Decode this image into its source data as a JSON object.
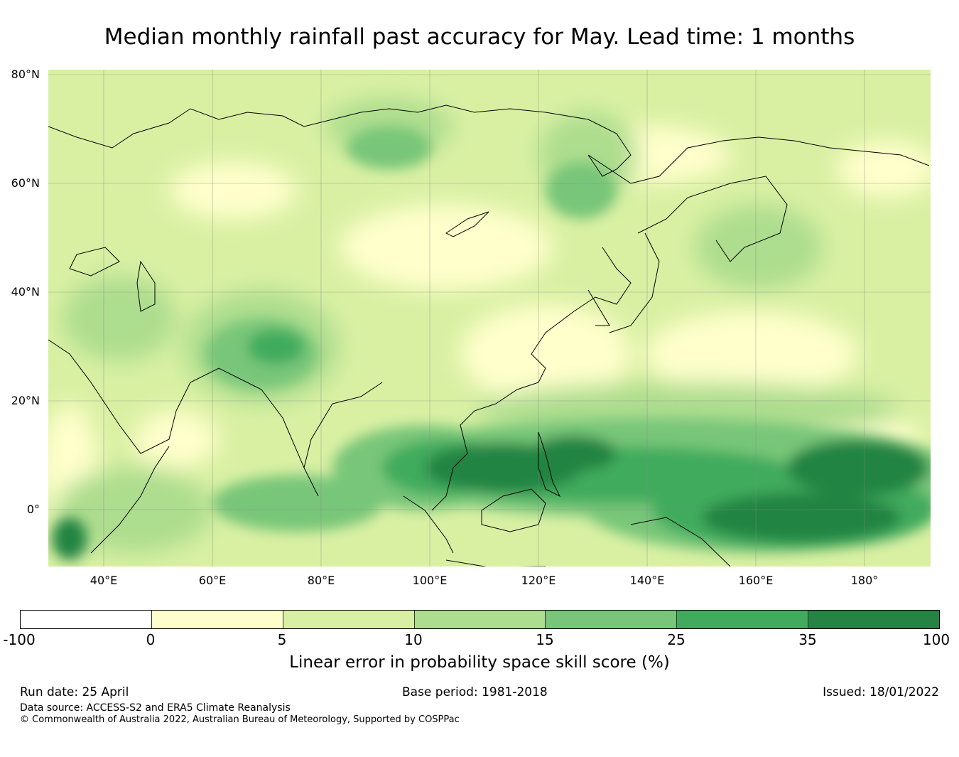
{
  "title": "Median monthly rainfall past accuracy for May. Lead time: 1 months",
  "map": {
    "lat_labels": [
      "80°N",
      "60°N",
      "40°N",
      "20°N",
      "0°"
    ],
    "lon_labels": [
      "40°E",
      "60°E",
      "80°E",
      "100°E",
      "120°E",
      "140°E",
      "160°E",
      "180°"
    ]
  },
  "colorbar": {
    "label": "Linear error in probability space skill score (%)",
    "ticks": [
      "-100",
      "0",
      "5",
      "10",
      "15",
      "25",
      "35",
      "100"
    ],
    "colors": [
      "#ffffff",
      "#ffffcc",
      "#d9f0a3",
      "#addd8e",
      "#78c679",
      "#41ab5d",
      "#238443"
    ]
  },
  "footer": {
    "run_date": "Run date: 25 April",
    "base_period": "Base period: 1981-2018",
    "issued": "Issued: 18/01/2022",
    "data_source": "Data source: ACCESS-S2 and ERA5 Climate Reanalysis",
    "copyright": "© Commonwealth of Australia 2022, Australian Bureau of Meteorology, Supported by COSPPac"
  }
}
